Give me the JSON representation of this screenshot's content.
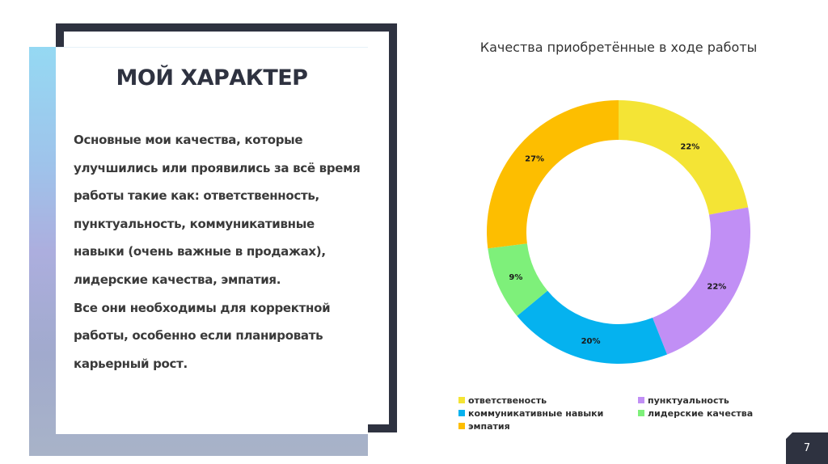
{
  "slide": {
    "title": "МОЙ ХАРАКТЕР",
    "body_lines": [
      "Основные мои качества, которые",
      "улучшились или проявились за всё время",
      "работы такие как: ответственность,",
      "пунктуальность, коммуникативные",
      "навыки (очень важные в продажах),",
      "лидерские качества, эмпатия.",
      "Все они необходимы для корректной",
      "работы, особенно если планировать",
      "карьерный рост."
    ],
    "page_number": "7"
  },
  "colors": {
    "frame": "#2e3240",
    "gradient_top": "#95d9f3",
    "gradient_mid": "#acaede",
    "gradient_bottom": "#a8b3c8"
  },
  "chart_data": {
    "type": "pie",
    "variant": "donut",
    "title": "Качества приобретённые в ходе работы",
    "categories": [
      "ответственость",
      "пунктуальность",
      "коммуникативные навыки",
      "лидерские качества",
      "эмпатия"
    ],
    "values": [
      22,
      22,
      20,
      9,
      27
    ],
    "labels": [
      "22%",
      "22%",
      "20%",
      "9%",
      "27%"
    ],
    "unit": "%",
    "colors": [
      "#f4e435",
      "#c18ff5",
      "#05b2ef",
      "#7ef07a",
      "#fdbe00"
    ],
    "start_angle": "12 o'clock, clockwise",
    "legend_position": "bottom",
    "legend": [
      {
        "label": "ответственость",
        "color": "#f4e435"
      },
      {
        "label": "пунктуальность",
        "color": "#c18ff5"
      },
      {
        "label": "коммуникативные навыки",
        "color": "#05b2ef"
      },
      {
        "label": "лидерские качества",
        "color": "#7ef07a"
      },
      {
        "label": "эмпатия",
        "color": "#fdbe00"
      }
    ]
  }
}
